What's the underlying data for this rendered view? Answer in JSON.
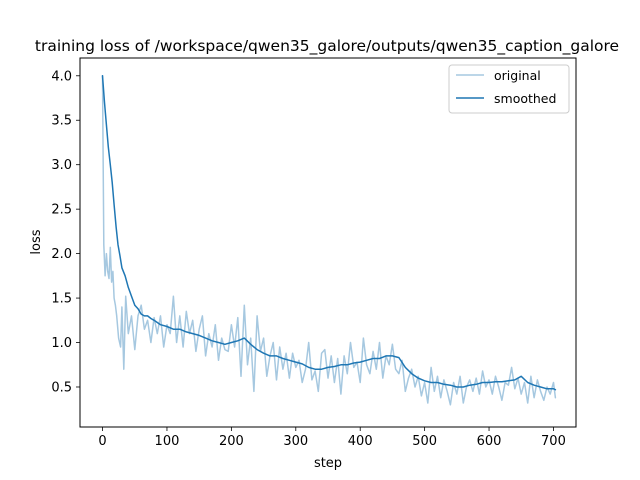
{
  "chart_data": {
    "type": "line",
    "title": "training loss of /workspace/qwen35_galore/outputs/qwen35_caption_galore",
    "xlabel": "step",
    "ylabel": "loss",
    "xlim": [
      -35,
      735
    ],
    "ylim": [
      0.05,
      4.2
    ],
    "xticks": [
      0,
      100,
      200,
      300,
      400,
      500,
      600,
      700
    ],
    "yticks": [
      0.5,
      1.0,
      1.5,
      2.0,
      2.5,
      3.0,
      3.5,
      4.0
    ],
    "ytick_labels": [
      "0.5",
      "1.0",
      "1.5",
      "2.0",
      "2.5",
      "3.0",
      "3.5",
      "4.0"
    ],
    "grid": false,
    "legend_position": "top-right",
    "series": [
      {
        "name": "original",
        "color": "#a6c8e0",
        "x": [
          0,
          2,
          4,
          6,
          8,
          10,
          12,
          14,
          16,
          18,
          20,
          22,
          25,
          28,
          30,
          33,
          36,
          40,
          45,
          50,
          55,
          60,
          65,
          70,
          75,
          80,
          85,
          90,
          95,
          100,
          105,
          110,
          115,
          120,
          125,
          130,
          135,
          140,
          145,
          150,
          155,
          160,
          165,
          170,
          175,
          180,
          185,
          190,
          195,
          200,
          205,
          210,
          215,
          220,
          225,
          230,
          235,
          240,
          245,
          250,
          255,
          260,
          265,
          270,
          275,
          280,
          285,
          290,
          295,
          300,
          305,
          310,
          315,
          320,
          325,
          330,
          335,
          340,
          345,
          350,
          355,
          360,
          365,
          370,
          375,
          380,
          385,
          390,
          395,
          400,
          405,
          410,
          415,
          420,
          425,
          430,
          435,
          440,
          445,
          450,
          455,
          460,
          465,
          470,
          475,
          480,
          485,
          490,
          495,
          500,
          505,
          510,
          515,
          520,
          525,
          530,
          535,
          540,
          545,
          550,
          555,
          560,
          565,
          570,
          575,
          580,
          585,
          590,
          595,
          600,
          605,
          610,
          615,
          620,
          625,
          630,
          635,
          640,
          645,
          650,
          655,
          660,
          665,
          670,
          675,
          680,
          685,
          690,
          695,
          700,
          703
        ],
        "y": [
          4.0,
          2.1,
          1.75,
          2.0,
          1.8,
          1.72,
          2.07,
          1.68,
          1.8,
          1.5,
          1.42,
          1.3,
          1.05,
          0.95,
          1.4,
          0.7,
          1.52,
          1.1,
          1.3,
          0.92,
          1.3,
          1.42,
          1.15,
          1.25,
          1.0,
          1.28,
          1.1,
          1.3,
          0.95,
          1.2,
          1.1,
          1.52,
          1.0,
          1.3,
          0.95,
          1.35,
          1.1,
          1.25,
          0.9,
          1.15,
          1.3,
          0.85,
          1.1,
          0.95,
          1.2,
          0.8,
          1.05,
          0.92,
          0.9,
          1.2,
          0.95,
          1.28,
          0.62,
          1.42,
          0.75,
          1.05,
          0.45,
          1.3,
          0.9,
          1.05,
          0.62,
          0.85,
          1.0,
          0.58,
          0.95,
          0.7,
          0.88,
          0.6,
          0.88,
          0.72,
          0.8,
          0.55,
          0.7,
          1.0,
          0.58,
          0.68,
          0.45,
          0.88,
          0.92,
          0.6,
          0.85,
          0.55,
          0.82,
          0.42,
          0.85,
          0.65,
          1.0,
          0.72,
          0.78,
          0.55,
          1.05,
          0.75,
          0.65,
          0.9,
          0.7,
          1.0,
          0.6,
          0.85,
          0.75,
          0.98,
          0.7,
          0.65,
          0.8,
          0.45,
          0.6,
          0.7,
          0.5,
          0.62,
          0.4,
          0.55,
          0.32,
          0.72,
          0.45,
          0.62,
          0.38,
          0.58,
          0.45,
          0.3,
          0.55,
          0.42,
          0.62,
          0.32,
          0.5,
          0.58,
          0.45,
          0.6,
          0.42,
          0.68,
          0.5,
          0.58,
          0.42,
          0.62,
          0.5,
          0.35,
          0.55,
          0.52,
          0.72,
          0.48,
          0.6,
          0.42,
          0.55,
          0.32,
          0.62,
          0.38,
          0.58,
          0.45,
          0.35,
          0.5,
          0.42,
          0.55,
          0.38
        ]
      },
      {
        "name": "smoothed",
        "color": "#1f77b4",
        "x": [
          0,
          3,
          6,
          9,
          12,
          15,
          18,
          21,
          24,
          27,
          30,
          35,
          40,
          45,
          50,
          55,
          60,
          65,
          70,
          75,
          80,
          90,
          100,
          110,
          120,
          130,
          140,
          150,
          160,
          170,
          180,
          190,
          200,
          210,
          220,
          230,
          240,
          250,
          260,
          270,
          280,
          290,
          300,
          310,
          320,
          330,
          340,
          350,
          360,
          370,
          380,
          390,
          400,
          410,
          420,
          430,
          440,
          450,
          460,
          470,
          480,
          490,
          500,
          510,
          520,
          530,
          540,
          550,
          560,
          570,
          580,
          590,
          600,
          610,
          620,
          630,
          640,
          650,
          660,
          670,
          680,
          690,
          700,
          703
        ],
        "y": [
          4.0,
          3.7,
          3.45,
          3.2,
          3.0,
          2.8,
          2.55,
          2.3,
          2.1,
          1.98,
          1.84,
          1.75,
          1.62,
          1.52,
          1.42,
          1.38,
          1.32,
          1.3,
          1.3,
          1.27,
          1.25,
          1.2,
          1.18,
          1.15,
          1.15,
          1.12,
          1.1,
          1.08,
          1.05,
          1.02,
          1.0,
          0.98,
          1.0,
          1.02,
          1.05,
          0.98,
          0.92,
          0.88,
          0.85,
          0.85,
          0.82,
          0.8,
          0.78,
          0.76,
          0.72,
          0.7,
          0.7,
          0.72,
          0.73,
          0.75,
          0.75,
          0.77,
          0.78,
          0.8,
          0.82,
          0.82,
          0.85,
          0.85,
          0.83,
          0.72,
          0.65,
          0.6,
          0.57,
          0.55,
          0.55,
          0.53,
          0.52,
          0.5,
          0.5,
          0.52,
          0.53,
          0.55,
          0.55,
          0.56,
          0.56,
          0.57,
          0.58,
          0.62,
          0.55,
          0.52,
          0.5,
          0.48,
          0.48,
          0.47
        ]
      }
    ]
  }
}
